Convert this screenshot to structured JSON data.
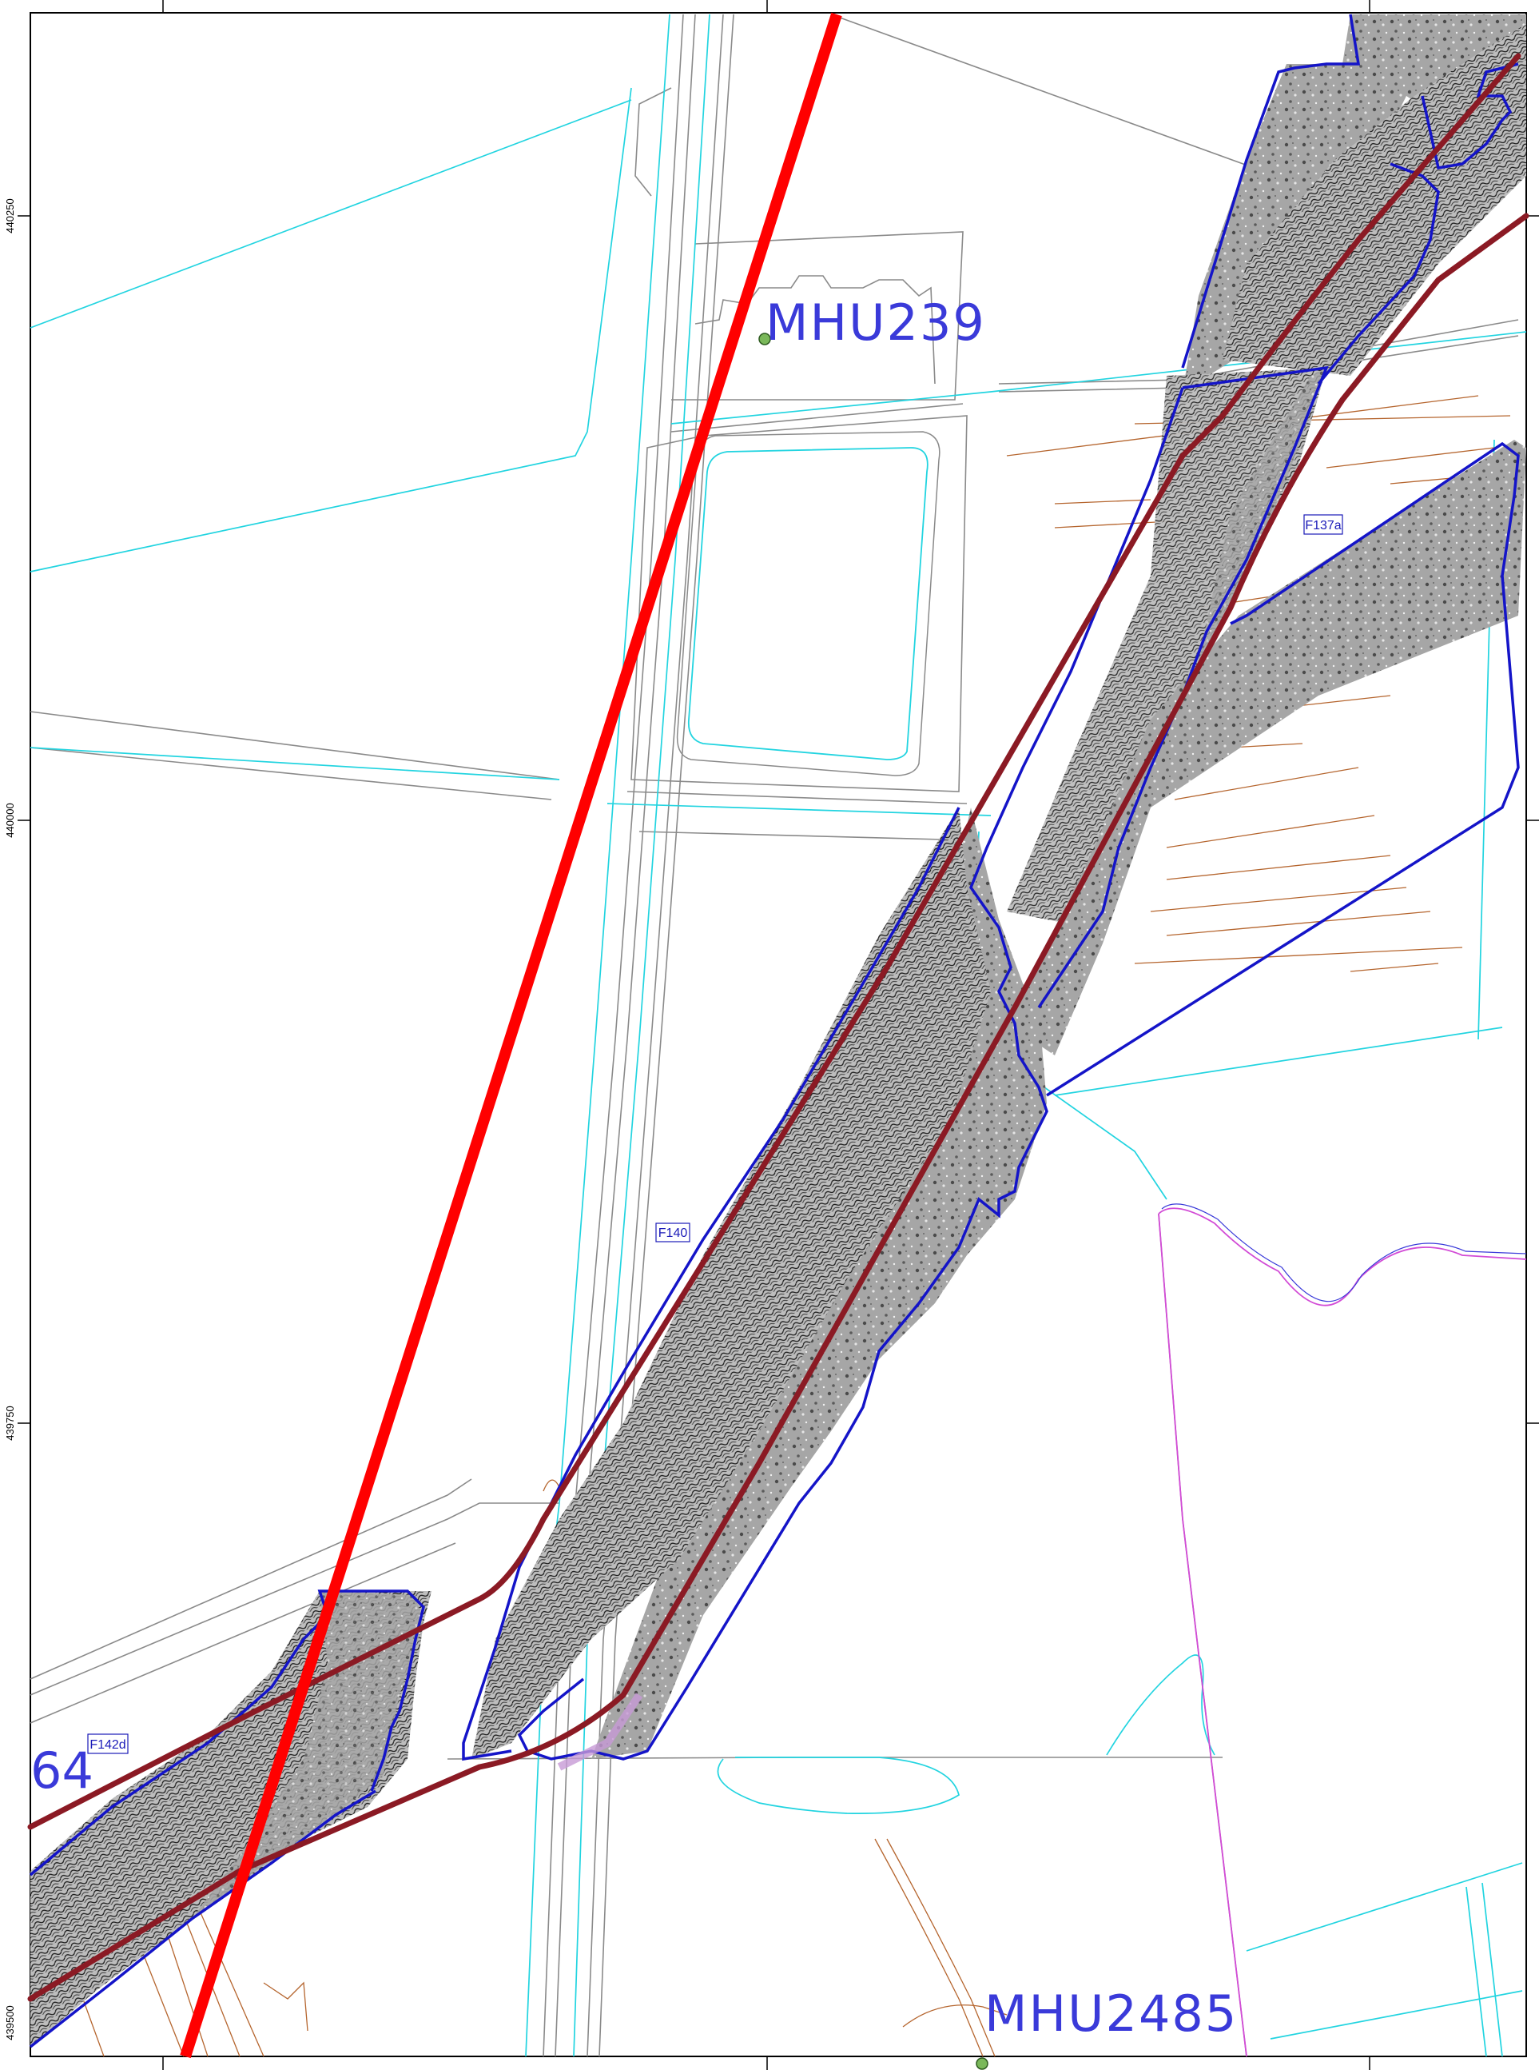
{
  "grid": {
    "northings": [
      "440250",
      "440000",
      "439750",
      "439500"
    ]
  },
  "sites": [
    {
      "id": "mhu239",
      "label": "MHU239"
    },
    {
      "id": "mhu2485",
      "label": "MHU2485"
    },
    {
      "id": "partial",
      "label": "64"
    }
  ],
  "fields": [
    {
      "id": "f137a",
      "label": "F137a"
    },
    {
      "id": "f140",
      "label": "F140"
    },
    {
      "id": "f142d",
      "label": "F142d"
    }
  ],
  "colors": {
    "frame": "#000000",
    "survey_boundary": "#1414c8",
    "route_corridor": "#8b1a24",
    "red_line": "#ff0000",
    "watercourse": "#22d4e0",
    "mapping": "#8a8a8a",
    "archaeology": "#b5652e",
    "parish_boundary": "#d24bd6",
    "site_marker": "#7ab85a"
  }
}
